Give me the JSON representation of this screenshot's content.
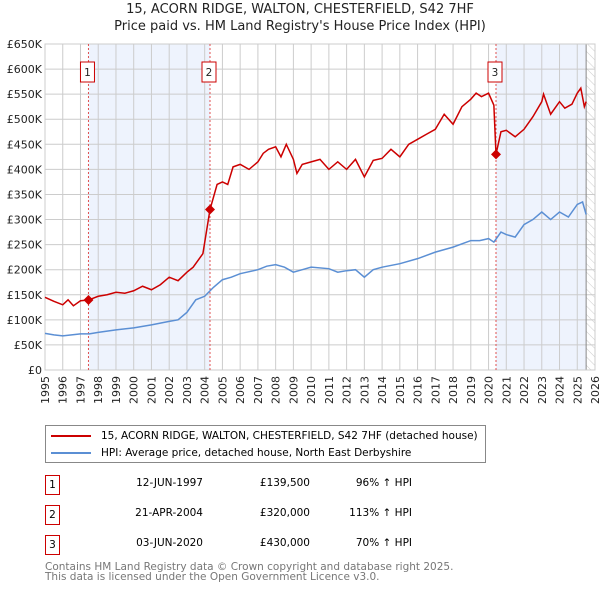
{
  "title_line1": "15, ACORN RIDGE, WALTON, CHESTERFIELD, S42 7HF",
  "title_line2": "Price paid vs. HM Land Registry's House Price Index (HPI)",
  "chart_data": {
    "type": "line",
    "title": "15, ACORN RIDGE, WALTON, CHESTERFIELD, S42 7HF — Price paid vs. HM Land Registry's House Price Index (HPI)",
    "xlim": [
      1995,
      2026
    ],
    "ylim": [
      0,
      650000
    ],
    "x_ticks": [
      "1995",
      "1996",
      "1997",
      "1998",
      "1999",
      "2000",
      "2001",
      "2002",
      "2003",
      "2004",
      "2005",
      "2006",
      "2007",
      "2008",
      "2009",
      "2010",
      "2011",
      "2012",
      "2013",
      "2014",
      "2015",
      "2016",
      "2017",
      "2018",
      "2019",
      "2020",
      "2021",
      "2022",
      "2023",
      "2024",
      "2025",
      "2026"
    ],
    "y_ticks": [
      {
        "v": 0,
        "label": "£0"
      },
      {
        "v": 50000,
        "label": "£50K"
      },
      {
        "v": 100000,
        "label": "£100K"
      },
      {
        "v": 150000,
        "label": "£150K"
      },
      {
        "v": 200000,
        "label": "£200K"
      },
      {
        "v": 250000,
        "label": "£250K"
      },
      {
        "v": 300000,
        "label": "£300K"
      },
      {
        "v": 350000,
        "label": "£350K"
      },
      {
        "v": 400000,
        "label": "£400K"
      },
      {
        "v": 450000,
        "label": "£450K"
      },
      {
        "v": 500000,
        "label": "£500K"
      },
      {
        "v": 550000,
        "label": "£550K"
      },
      {
        "v": 600000,
        "label": "£600K"
      },
      {
        "v": 650000,
        "label": "£650K"
      }
    ],
    "grid": true,
    "shaded_ranges": [
      [
        1997.45,
        2004.3
      ],
      [
        2020.42,
        2025.5
      ]
    ],
    "hatched_from": 2025.5,
    "series": [
      {
        "name": "15, ACORN RIDGE, WALTON, CHESTERFIELD, S42 7HF (detached house)",
        "color": "#cc0000",
        "x": [
          1995,
          1995.5,
          1996,
          1996.3,
          1996.6,
          1997,
          1997.45,
          1998,
          1998.5,
          1999,
          1999.5,
          2000,
          2000.5,
          2001,
          2001.5,
          2002,
          2002.5,
          2003,
          2003.35,
          2003.9,
          2004.3,
          2004.7,
          2005,
          2005.3,
          2005.6,
          2006,
          2006.5,
          2007,
          2007.3,
          2007.6,
          2008,
          2008.3,
          2008.6,
          2009,
          2009.2,
          2009.5,
          2010,
          2010.5,
          2011,
          2011.5,
          2012,
          2012.5,
          2013,
          2013.5,
          2014,
          2014.5,
          2015,
          2015.5,
          2016,
          2016.5,
          2017,
          2017.5,
          2018,
          2018.5,
          2019,
          2019.3,
          2019.6,
          2020,
          2020.3,
          2020.42,
          2020.7,
          2021,
          2021.5,
          2022,
          2022.5,
          2023,
          2023.1,
          2023.5,
          2024,
          2024.3,
          2024.7,
          2025,
          2025.2,
          2025.4,
          2025.5
        ],
        "y": [
          145000,
          137000,
          130000,
          140000,
          128000,
          138000,
          139500,
          147000,
          150000,
          155000,
          153000,
          158000,
          167000,
          160000,
          170000,
          185000,
          178000,
          195000,
          205000,
          232000,
          320000,
          370000,
          375000,
          370000,
          405000,
          410000,
          400000,
          415000,
          432000,
          440000,
          445000,
          425000,
          450000,
          420000,
          392000,
          410000,
          415000,
          420000,
          400000,
          415000,
          400000,
          420000,
          385000,
          418000,
          422000,
          440000,
          425000,
          450000,
          460000,
          470000,
          480000,
          510000,
          490000,
          525000,
          540000,
          552000,
          545000,
          552000,
          528000,
          430000,
          475000,
          478000,
          465000,
          480000,
          505000,
          535000,
          550000,
          510000,
          535000,
          522000,
          530000,
          552000,
          562000,
          525000,
          535000
        ]
      },
      {
        "name": "HPI: Average price, detached house, North East Derbyshire",
        "color": "#5b8fd4",
        "x": [
          1995,
          1995.5,
          1996,
          1996.5,
          1997,
          1997.5,
          1998,
          1999,
          2000,
          2001,
          2002,
          2002.5,
          2003,
          2003.5,
          2004,
          2004.5,
          2005,
          2005.5,
          2006,
          2007,
          2007.5,
          2008,
          2008.5,
          2009,
          2009.5,
          2010,
          2011,
          2011.5,
          2012,
          2012.5,
          2013,
          2013.5,
          2014,
          2015,
          2016,
          2017,
          2017.5,
          2018,
          2019,
          2019.5,
          2020,
          2020.3,
          2020.7,
          2021,
          2021.5,
          2022,
          2022.5,
          2023,
          2023.5,
          2024,
          2024.5,
          2025,
          2025.3,
          2025.5
        ],
        "y": [
          73000,
          70000,
          68000,
          70000,
          72000,
          72000,
          75000,
          80000,
          84000,
          90000,
          97000,
          100000,
          115000,
          140000,
          147000,
          165000,
          180000,
          185000,
          192000,
          200000,
          207000,
          210000,
          205000,
          195000,
          200000,
          205000,
          202000,
          195000,
          198000,
          200000,
          185000,
          200000,
          205000,
          212000,
          222000,
          235000,
          240000,
          245000,
          258000,
          258000,
          262000,
          255000,
          275000,
          270000,
          265000,
          290000,
          300000,
          315000,
          300000,
          315000,
          305000,
          330000,
          335000,
          310000
        ]
      }
    ],
    "annotations": [
      {
        "label": "1",
        "x": 1997.45,
        "y": 139500
      },
      {
        "label": "2",
        "x": 2004.3,
        "y": 320000
      },
      {
        "label": "3",
        "x": 2020.42,
        "y": 430000
      }
    ]
  },
  "legend": [
    {
      "label": "15, ACORN RIDGE, WALTON, CHESTERFIELD, S42 7HF (detached house)",
      "color": "#cc0000"
    },
    {
      "label": "HPI: Average price, detached house, North East Derbyshire",
      "color": "#5b8fd4"
    }
  ],
  "transactions": [
    {
      "num": "1",
      "date": "12-JUN-1997",
      "price": "£139,500",
      "hpi": "96% ↑ HPI"
    },
    {
      "num": "2",
      "date": "21-APR-2004",
      "price": "£320,000",
      "hpi": "113% ↑ HPI"
    },
    {
      "num": "3",
      "date": "03-JUN-2020",
      "price": "£430,000",
      "hpi": "70% ↑ HPI"
    }
  ],
  "footer_line1": "Contains HM Land Registry data © Crown copyright and database right 2025.",
  "footer_line2": "This data is licensed under the Open Government Licence v3.0."
}
